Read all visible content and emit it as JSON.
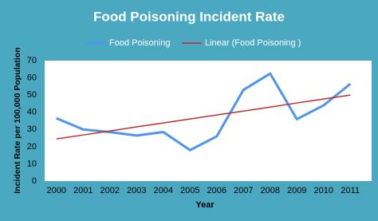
{
  "chart_data": {
    "type": "line",
    "title": "Food Poisoning Incident Rate",
    "x_label": "Year",
    "y_label": "Incident Rate per 100,000 Population",
    "categories": [
      "2000",
      "2001",
      "2002",
      "2003",
      "2004",
      "2005",
      "2006",
      "2007",
      "2008",
      "2009",
      "2010",
      "2011"
    ],
    "series": [
      {
        "name": "Food Poisoning",
        "color": "#4f94f0",
        "width": 3,
        "values": [
          36.5,
          30,
          28.5,
          26.5,
          28.5,
          18,
          26,
          53,
          62.5,
          36,
          44,
          56.5
        ]
      },
      {
        "name": "Linear (Food Poisoning )",
        "color": "#c0302b",
        "width": 1.5,
        "values": [
          24.5,
          26.8,
          29.1,
          31.5,
          33.8,
          36.1,
          38.4,
          40.7,
          43.0,
          45.4,
          47.7,
          50.0
        ]
      }
    ],
    "ylim": [
      0,
      70
    ],
    "yticks": [
      0,
      10,
      20,
      30,
      40,
      50,
      60,
      70
    ],
    "grid": false
  }
}
